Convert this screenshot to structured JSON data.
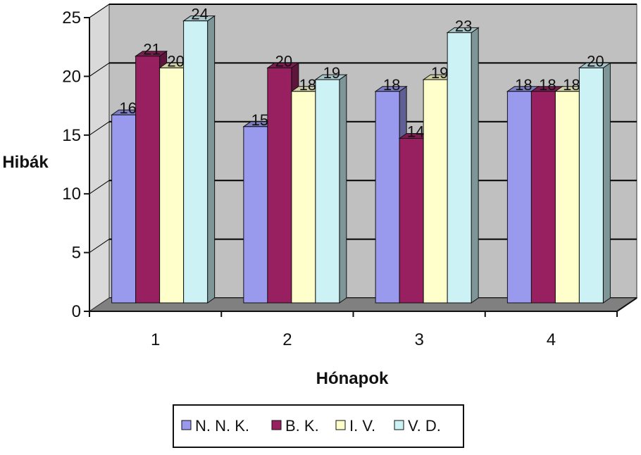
{
  "chart_data": {
    "type": "bar",
    "style": "3d-clustered-column",
    "xlabel": "Hónapok",
    "ylabel": "Hibák",
    "categories": [
      "1",
      "2",
      "3",
      "4"
    ],
    "ylim": [
      0,
      25
    ],
    "yticks": [
      "0",
      "5",
      "10",
      "15",
      "20",
      "25"
    ],
    "grid": true,
    "legend_position": "bottom",
    "series": [
      {
        "name": "N. N. K.",
        "values": [
          16,
          15,
          18,
          18
        ],
        "color": "#9999ee"
      },
      {
        "name": "B. K.",
        "values": [
          21,
          20,
          14,
          18
        ],
        "color": "#992060"
      },
      {
        "name": "I. V.",
        "values": [
          20,
          18,
          19,
          18
        ],
        "color": "#ffffcc"
      },
      {
        "name": "V. D.",
        "values": [
          24,
          19,
          23,
          20
        ],
        "color": "#cdf2f6"
      }
    ],
    "data_labels": [
      [
        "16",
        "15",
        "18",
        "18"
      ],
      [
        "21",
        "20",
        "14",
        "18"
      ],
      [
        "20",
        "18",
        "19",
        "18"
      ],
      [
        "24",
        "19",
        "23",
        "20"
      ]
    ],
    "colors": {
      "plot_wall": "#c0c0c0",
      "floor": "#808080",
      "gridline": "#000000"
    }
  }
}
